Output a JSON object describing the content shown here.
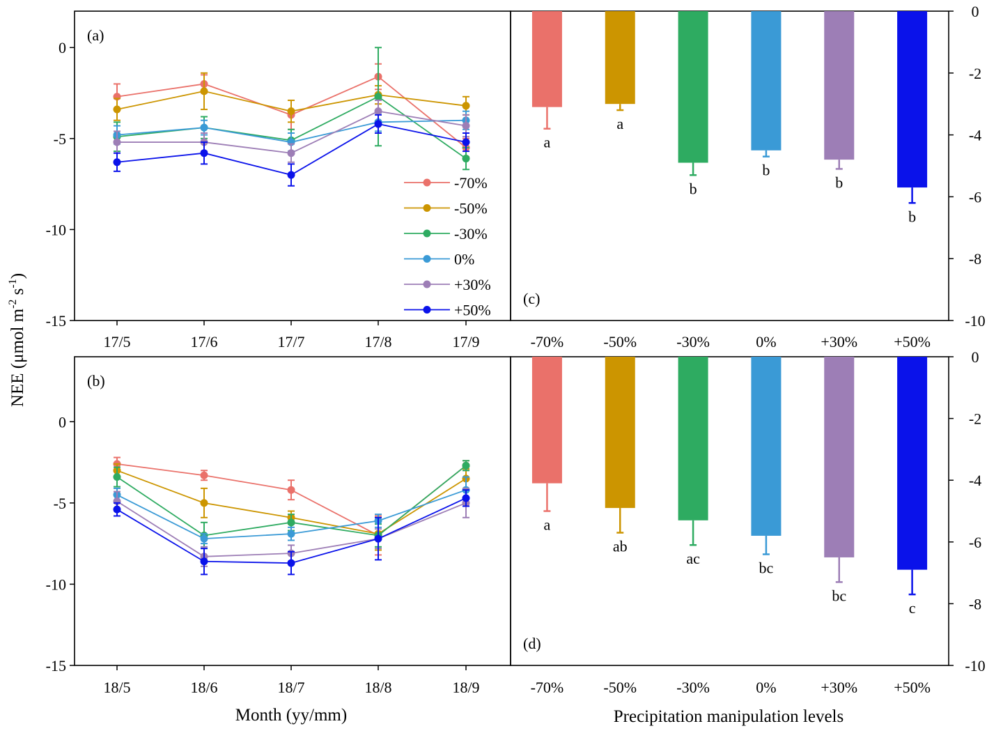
{
  "figure": {
    "ylabel": "NEE (μmol m",
    "ylabel_sup1": "-2",
    "ylabel_mid": " s",
    "ylabel_sup2": "-1",
    "ylabel_end": ")",
    "xlabel_left": "Month (yy/mm)",
    "xlabel_right": "Precipitation manipulation levels"
  },
  "series_meta": [
    {
      "name": "-70%",
      "color": "#ea716a"
    },
    {
      "name": "-50%",
      "color": "#cc9500"
    },
    {
      "name": "-30%",
      "color": "#2eab61"
    },
    {
      "name": "0%",
      "color": "#3a9ad6"
    },
    {
      "name": "+30%",
      "color": "#9d7eb6"
    },
    {
      "name": "+50%",
      "color": "#0a12ea"
    }
  ],
  "chart_data": [
    {
      "id": "a",
      "panel_label": "(a)",
      "type": "line",
      "categories": [
        "17/5",
        "17/6",
        "17/7",
        "17/8",
        "17/9"
      ],
      "ylim": [
        -15,
        2
      ],
      "yticks": [
        0,
        -5,
        -10,
        -15
      ],
      "series": [
        {
          "name": "-70%",
          "values": [
            -2.7,
            -2.0,
            -3.7,
            -1.6,
            -5.5
          ],
          "errors": [
            0.7,
            0.5,
            0.8,
            0.7,
            0.5
          ]
        },
        {
          "name": "-50%",
          "values": [
            -3.4,
            -2.4,
            -3.5,
            -2.6,
            -3.2
          ],
          "errors": [
            0.6,
            1.0,
            0.6,
            0.5,
            0.5
          ]
        },
        {
          "name": "-30%",
          "values": [
            -4.9,
            -4.4,
            -5.1,
            -2.7,
            -6.1
          ],
          "errors": [
            0.8,
            0.6,
            0.6,
            2.7,
            0.6
          ]
        },
        {
          "name": "0%",
          "values": [
            -4.8,
            -4.4,
            -5.2,
            -4.1,
            -4.0
          ],
          "errors": [
            0.5,
            0.4,
            0.5,
            0.5,
            0.5
          ]
        },
        {
          "name": "+30%",
          "values": [
            -5.2,
            -5.2,
            -5.8,
            -3.5,
            -4.3
          ],
          "errors": [
            0.6,
            0.5,
            0.5,
            0.6,
            0.6
          ]
        },
        {
          "name": "+50%",
          "values": [
            -6.3,
            -5.8,
            -7.0,
            -4.2,
            -5.2
          ],
          "errors": [
            0.5,
            0.6,
            0.6,
            0.5,
            0.5
          ]
        }
      ]
    },
    {
      "id": "b",
      "panel_label": "(b)",
      "type": "line",
      "categories": [
        "18/5",
        "18/6",
        "18/7",
        "18/8",
        "18/9"
      ],
      "ylim": [
        -15,
        4
      ],
      "yticks": [
        0,
        -5,
        -10,
        -15
      ],
      "series": [
        {
          "name": "-70%",
          "values": [
            -2.6,
            -3.3,
            -4.2,
            -7.0,
            -2.7
          ],
          "errors": [
            0.4,
            0.3,
            0.6,
            1.2,
            0.3
          ]
        },
        {
          "name": "-50%",
          "values": [
            -3.0,
            -5.0,
            -5.9,
            -6.9,
            -3.5
          ],
          "errors": [
            0.4,
            0.9,
            0.4,
            1.0,
            0.6
          ]
        },
        {
          "name": "-30%",
          "values": [
            -3.4,
            -7.0,
            -6.2,
            -7.0,
            -2.7
          ],
          "errors": [
            0.6,
            0.8,
            0.5,
            0.7,
            0.3
          ]
        },
        {
          "name": "0%",
          "values": [
            -4.5,
            -7.2,
            -6.9,
            -6.1,
            -4.2
          ],
          "errors": [
            0.4,
            0.3,
            0.4,
            0.4,
            0.8
          ]
        },
        {
          "name": "+30%",
          "values": [
            -4.9,
            -8.3,
            -8.1,
            -7.2,
            -5.0
          ],
          "errors": [
            0.6,
            0.6,
            0.5,
            0.6,
            0.9
          ]
        },
        {
          "name": "+50%",
          "values": [
            -5.4,
            -8.6,
            -8.7,
            -7.2,
            -4.7
          ],
          "errors": [
            0.4,
            0.8,
            0.7,
            1.3,
            0.5
          ]
        }
      ]
    },
    {
      "id": "c",
      "panel_label": "(c)",
      "type": "bar",
      "categories": [
        "-70%",
        "-50%",
        "-30%",
        "0%",
        "+30%",
        "+50%"
      ],
      "values": [
        -3.1,
        -3.0,
        -4.9,
        -4.5,
        -4.8,
        -5.7
      ],
      "errors": [
        0.7,
        0.2,
        0.4,
        0.2,
        0.3,
        0.5
      ],
      "significance": [
        "a",
        "a",
        "b",
        "b",
        "b",
        "b"
      ],
      "ylim": [
        -10,
        0
      ],
      "yticks": [
        0,
        -2,
        -4,
        -6,
        -8,
        -10
      ]
    },
    {
      "id": "d",
      "panel_label": "(d)",
      "type": "bar",
      "categories": [
        "-70%",
        "-50%",
        "-30%",
        "0%",
        "+30%",
        "+50%"
      ],
      "values": [
        -4.1,
        -4.9,
        -5.3,
        -5.8,
        -6.5,
        -6.9
      ],
      "errors": [
        0.9,
        0.8,
        0.8,
        0.6,
        0.8,
        0.8
      ],
      "significance": [
        "a",
        "ab",
        "ac",
        "bc",
        "bc",
        "c"
      ],
      "ylim": [
        -10,
        0
      ],
      "yticks": [
        0,
        -2,
        -4,
        -6,
        -8,
        -10
      ]
    }
  ]
}
